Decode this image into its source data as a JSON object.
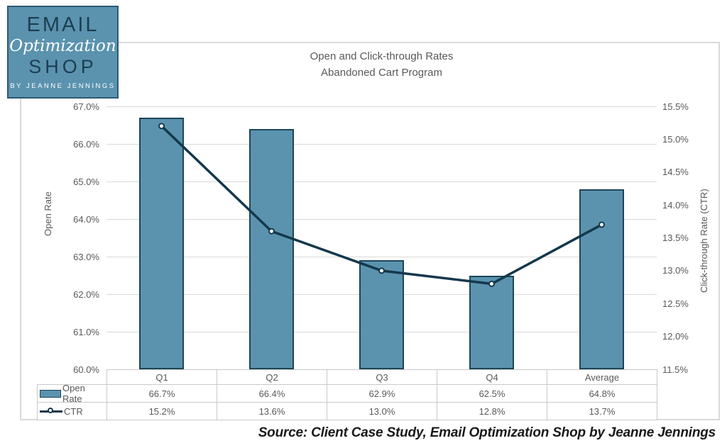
{
  "logo": {
    "line1": "EMAIL",
    "line2": "Optimization",
    "line3": "SHOP",
    "line4": "BY JEANNE JENNINGS"
  },
  "source_note": "Source: Client Case Study, Email Optimization Shop by Jeanne Jennings",
  "chart_data": {
    "type": "bar+line combo",
    "title": "Open and Click-through Rates",
    "subtitle": "Abandoned Cart Program",
    "categories": [
      "Q1",
      "Q2",
      "Q3",
      "Q4",
      "Average"
    ],
    "series": [
      {
        "name": "Open Rate",
        "type": "bar",
        "axis": "left",
        "values": [
          66.7,
          66.4,
          62.9,
          62.5,
          64.8
        ],
        "labels": [
          "66.7%",
          "66.4%",
          "62.9%",
          "62.5%",
          "64.8%"
        ]
      },
      {
        "name": "CTR",
        "type": "line",
        "axis": "right",
        "values": [
          15.2,
          13.6,
          13.0,
          12.8,
          13.7
        ],
        "labels": [
          "15.2%",
          "13.6%",
          "13.0%",
          "12.8%",
          "13.7%"
        ]
      }
    ],
    "left_axis": {
      "title": "Open Rate",
      "min": 60.0,
      "max": 67.0,
      "step": 1.0,
      "ticks": [
        "67.0%",
        "66.0%",
        "65.0%",
        "64.0%",
        "63.0%",
        "62.0%",
        "61.0%",
        "60.0%"
      ]
    },
    "right_axis": {
      "title": "Click-through Rate (CTR)",
      "min": 11.5,
      "max": 15.5,
      "step": 0.5,
      "ticks": [
        "15.5%",
        "15.0%",
        "14.5%",
        "14.0%",
        "13.5%",
        "13.0%",
        "12.5%",
        "12.0%",
        "11.5%"
      ]
    },
    "grid": "horizontal",
    "legend_position": "data-table-left",
    "colors": {
      "bar_fill": "#5b93af",
      "bar_border": "#1d4659",
      "line": "#14384c",
      "marker_fill": "#ffffff",
      "grid": "#d9d9d9",
      "axis_text": "#595959",
      "table_border": "#c9c9c9",
      "logo_bg": "#5b93af",
      "logo_text_dark": "#1d3e52"
    }
  }
}
